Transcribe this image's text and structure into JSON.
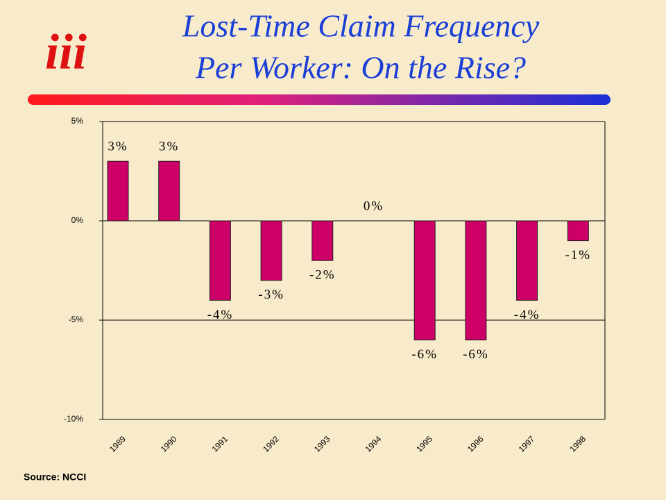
{
  "logo": "iii",
  "source": "Source: NCCI",
  "chart_data": {
    "type": "bar",
    "title": [
      "Lost-Time Claim Frequency",
      "Per Worker: On the Rise?"
    ],
    "categories": [
      "1989",
      "1990",
      "1991",
      "1992",
      "1993",
      "1994",
      "1995",
      "1996",
      "1997",
      "1998"
    ],
    "values": [
      3,
      3,
      -4,
      -3,
      -2,
      0,
      -6,
      -6,
      -4,
      -1
    ],
    "value_labels": [
      "3%",
      "3%",
      "-4%",
      "-3%",
      "-2%",
      "0%",
      "-6%",
      "-6%",
      "-4%",
      "-1%"
    ],
    "color": "#cc0066",
    "ylim": [
      -10,
      5
    ],
    "yticks": [
      {
        "value": 5,
        "label": "5%"
      },
      {
        "value": 0,
        "label": "0%"
      },
      {
        "value": -5,
        "label": "-5%"
      },
      {
        "value": -10,
        "label": "-10%"
      }
    ],
    "grid": true
  }
}
